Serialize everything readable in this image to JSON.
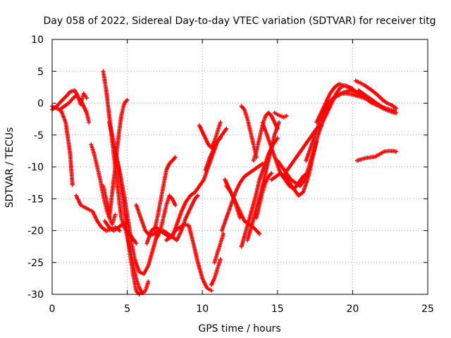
{
  "chart_data": {
    "type": "scatter",
    "title": "Day 058 of 2022, Sidereal Day-to-day VTEC variation (SDTVAR) for receiver titg",
    "xlabel": "GPS time / hours",
    "ylabel": "SDTVAR / TECUs",
    "xlim": [
      0,
      25
    ],
    "ylim": [
      -30,
      10
    ],
    "xticks": [
      0,
      5,
      10,
      15,
      20,
      25
    ],
    "yticks": [
      -30,
      -25,
      -20,
      -15,
      -10,
      -5,
      0,
      5,
      10
    ],
    "grid": true,
    "marker": "plus",
    "color": "#ff0000",
    "series": [
      {
        "x": [
          0.0,
          0.3,
          0.6,
          0.9,
          1.2,
          1.35
        ],
        "y": [
          -0.5,
          -0.8,
          -1.2,
          -3.0,
          -8.0,
          -12.8
        ]
      },
      {
        "x": [
          0.0,
          0.3,
          0.6,
          0.9,
          1.2,
          1.5,
          1.7,
          1.9,
          2.1,
          2.3
        ],
        "y": [
          -1.0,
          -0.5,
          0.3,
          1.0,
          1.8,
          2.0,
          1.2,
          -0.2,
          1.5,
          0.8
        ]
      },
      {
        "x": [
          0.5,
          0.8,
          1.1,
          1.4,
          1.6,
          1.9,
          2.1,
          2.3,
          2.45
        ],
        "y": [
          -1.0,
          -0.5,
          0.0,
          0.8,
          1.2,
          0.5,
          -0.5,
          -1.5,
          -3.0
        ]
      },
      {
        "x": [
          1.6,
          1.9,
          2.3,
          2.7,
          3.0,
          3.3,
          3.6,
          3.9,
          4.2,
          4.5
        ],
        "y": [
          -14.5,
          -16.0,
          -16.5,
          -17.0,
          -18.5,
          -19.5,
          -20.0,
          -19.8,
          -19.5,
          -20.0
        ]
      },
      {
        "x": [
          2.6,
          2.8,
          3.0,
          3.2,
          3.4,
          3.6,
          3.8
        ],
        "y": [
          -6.5,
          -8.0,
          -10.0,
          -12.0,
          -14.5,
          -16.5,
          -18.0
        ]
      },
      {
        "x": [
          3.4,
          3.6,
          3.8,
          3.9,
          4.0,
          4.2
        ],
        "y": [
          -13.0,
          -15.0,
          -17.5,
          -18.5,
          -19.0,
          -17.5
        ]
      },
      {
        "x": [
          3.5,
          3.8,
          4.1,
          4.4,
          4.7,
          5.0
        ],
        "y": [
          -18.5,
          -19.5,
          -20.0,
          -19.5,
          -19.0,
          -20.0
        ]
      },
      {
        "x": [
          3.4,
          3.6,
          3.8,
          4.0,
          4.2,
          4.4,
          4.6,
          4.8,
          5.0,
          5.3,
          5.6
        ],
        "y": [
          5.0,
          2.0,
          -2.0,
          -6.0,
          -10.0,
          -14.0,
          -18.0,
          -19.5,
          -20.0,
          -21.0,
          -22.0
        ]
      },
      {
        "x": [
          3.8,
          4.0,
          4.2,
          4.4,
          4.6,
          4.8,
          5.0
        ],
        "y": [
          -18.0,
          -14.0,
          -10.0,
          -5.5,
          -2.0,
          0.0,
          0.5
        ]
      },
      {
        "x": [
          3.8,
          4.0,
          4.2,
          4.4,
          4.6,
          4.8,
          5.0,
          5.2,
          5.4,
          5.6,
          5.8
        ],
        "y": [
          -3.0,
          -5.0,
          -7.5,
          -10.0,
          -13.0,
          -16.5,
          -20.5,
          -24.0,
          -27.0,
          -29.5,
          -30.0
        ]
      },
      {
        "x": [
          4.8,
          5.0,
          5.2,
          5.4,
          5.6,
          5.8,
          6.0,
          6.2,
          6.4
        ],
        "y": [
          -19.0,
          -21.0,
          -23.0,
          -25.5,
          -27.5,
          -29.0,
          -29.8,
          -29.5,
          -28.0
        ]
      },
      {
        "x": [
          4.3,
          4.6,
          4.9,
          5.1,
          5.3,
          5.5,
          5.8,
          6.1,
          6.4,
          6.7,
          7.0
        ],
        "y": [
          -8.5,
          -12.0,
          -16.0,
          -19.0,
          -22.0,
          -24.5,
          -26.5,
          -26.8,
          -25.5,
          -23.0,
          -20.5
        ]
      },
      {
        "x": [
          5.6,
          5.9,
          6.2,
          6.5,
          6.8,
          7.1
        ],
        "y": [
          -16.0,
          -18.0,
          -20.0,
          -20.8,
          -20.5,
          -20.0
        ]
      },
      {
        "x": [
          6.3,
          6.6,
          6.9,
          7.2,
          7.5,
          7.8
        ],
        "y": [
          -22.0,
          -20.0,
          -19.5,
          -20.0,
          -20.5,
          -21.0
        ]
      },
      {
        "x": [
          6.8,
          7.0,
          7.2,
          7.4,
          7.6,
          7.8,
          8.0,
          8.2
        ],
        "y": [
          -20.0,
          -18.0,
          -15.5,
          -13.0,
          -10.5,
          -9.5,
          -9.0,
          -8.5
        ]
      },
      {
        "x": [
          7.0,
          7.2,
          7.4,
          7.6,
          7.8,
          8.0,
          8.2
        ],
        "y": [
          -21.0,
          -20.0,
          -18.0,
          -16.0,
          -14.5,
          -15.0,
          -16.0
        ]
      },
      {
        "x": [
          7.4,
          7.7,
          8.0,
          8.3,
          8.6,
          8.9,
          9.2,
          9.5,
          9.7
        ],
        "y": [
          -20.0,
          -20.5,
          -21.0,
          -21.5,
          -20.0,
          -18.0,
          -16.5,
          -15.0,
          -14.5
        ]
      },
      {
        "x": [
          7.6,
          7.9,
          8.2,
          8.5,
          8.8,
          9.1,
          9.4,
          9.7,
          10.0,
          10.3,
          10.6
        ],
        "y": [
          -21.5,
          -21.0,
          -20.0,
          -19.5,
          -19.0,
          -19.2,
          -22.0,
          -25.0,
          -27.5,
          -29.0,
          -29.4
        ]
      },
      {
        "x": [
          8.0,
          8.3,
          8.6,
          8.9,
          9.2,
          9.5,
          9.8,
          10.1,
          10.4,
          10.7,
          11.0,
          11.3,
          11.6
        ],
        "y": [
          -21.0,
          -19.0,
          -17.0,
          -15.5,
          -14.5,
          -14.0,
          -13.0,
          -12.0,
          -10.0,
          -8.0,
          -6.0,
          -5.0,
          -4.0
        ]
      },
      {
        "x": [
          9.8,
          10.0,
          10.2,
          10.4,
          10.6,
          10.8,
          11.0,
          11.2
        ],
        "y": [
          -3.5,
          -4.5,
          -5.5,
          -6.5,
          -7.0,
          -6.0,
          -4.5,
          -3.0
        ]
      },
      {
        "x": [
          10.2,
          10.5,
          10.8,
          11.0,
          11.2
        ],
        "y": [
          -10.5,
          -8.5,
          -7.0,
          -6.0,
          -5.5
        ]
      },
      {
        "x": [
          10.6,
          10.8,
          11.0,
          11.2
        ],
        "y": [
          -28.5,
          -27.5,
          -26.0,
          -24.5
        ]
      },
      {
        "x": [
          10.8,
          11.0,
          11.2,
          11.4
        ],
        "y": [
          -25.0,
          -23.5,
          -22.0,
          -20.5
        ]
      },
      {
        "x": [
          11.5,
          11.7,
          11.9,
          12.1,
          12.3,
          12.5
        ],
        "y": [
          -12.0,
          -13.0,
          -14.0,
          -15.0,
          -16.5,
          -18.0
        ]
      },
      {
        "x": [
          11.3,
          11.6,
          11.9,
          12.2,
          12.5,
          12.8,
          13.1,
          13.4,
          13.7,
          14.0
        ],
        "y": [
          -20.0,
          -18.0,
          -16.0,
          -14.0,
          -12.5,
          -11.5,
          -11.0,
          -10.5,
          -10.0,
          -9.5
        ]
      },
      {
        "x": [
          11.6,
          11.9,
          12.2,
          12.5,
          12.8,
          13.1,
          13.4,
          13.6,
          13.8
        ],
        "y": [
          -13.0,
          -14.0,
          -15.5,
          -17.0,
          -18.5,
          -19.0,
          -19.5,
          -20.0,
          -20.5
        ]
      },
      {
        "x": [
          12.6,
          12.8,
          13.0,
          13.2,
          13.4,
          13.6
        ],
        "y": [
          -0.5,
          -1.0,
          -2.5,
          -4.5,
          -6.5,
          -8.5
        ]
      },
      {
        "x": [
          12.6,
          12.9,
          13.2,
          13.5,
          13.8,
          14.1,
          14.4,
          14.7,
          15.0
        ],
        "y": [
          -22.5,
          -20.0,
          -17.5,
          -15.0,
          -12.0,
          -10.0,
          -8.0,
          -6.5,
          -5.5
        ]
      },
      {
        "x": [
          13.0,
          13.3,
          13.6,
          13.9,
          14.2,
          14.5,
          14.8,
          15.1
        ],
        "y": [
          -21.5,
          -19.0,
          -16.5,
          -14.0,
          -11.0,
          -8.0,
          -5.0,
          -3.0
        ]
      },
      {
        "x": [
          13.4,
          13.6,
          13.8,
          14.0,
          14.2,
          14.4,
          14.6,
          14.8,
          15.0
        ],
        "y": [
          -9.0,
          -7.5,
          -5.5,
          -3.5,
          -2.0,
          -1.5,
          -2.0,
          -3.0,
          -4.0
        ]
      },
      {
        "x": [
          13.6,
          13.8,
          14.0,
          14.2,
          14.4,
          14.6
        ],
        "y": [
          -18.0,
          -16.0,
          -14.0,
          -12.5,
          -11.5,
          -11.0
        ]
      },
      {
        "x": [
          14.0,
          14.3,
          14.6,
          14.9,
          15.2,
          15.5,
          15.8,
          16.1,
          16.4,
          16.7,
          17.0
        ],
        "y": [
          -3.0,
          -5.0,
          -7.0,
          -9.0,
          -11.0,
          -12.0,
          -13.0,
          -13.5,
          -12.5,
          -11.5,
          -11.0
        ]
      },
      {
        "x": [
          14.6,
          14.9,
          15.2,
          15.5,
          15.8,
          16.1,
          16.4,
          16.7,
          17.0,
          17.3,
          17.6
        ],
        "y": [
          -12.0,
          -11.5,
          -11.0,
          -11.5,
          -12.5,
          -13.5,
          -14.5,
          -14.0,
          -12.0,
          -9.0,
          -6.0
        ]
      },
      {
        "x": [
          14.8,
          15.0,
          15.2,
          15.4,
          15.6
        ],
        "y": [
          -1.5,
          -1.8,
          -2.0,
          -2.2,
          -2.0
        ]
      },
      {
        "x": [
          15.0,
          15.3,
          15.6,
          15.9,
          16.2,
          16.5,
          16.8,
          17.1,
          17.4,
          17.7,
          18.0,
          18.3,
          18.6,
          18.9,
          19.2,
          19.5,
          19.8,
          20.1,
          20.4,
          20.7,
          21.0,
          21.3,
          21.6,
          21.9,
          22.2,
          22.5,
          22.8
        ],
        "y": [
          -9.0,
          -10.0,
          -11.0,
          -12.0,
          -12.5,
          -13.0,
          -12.0,
          -10.0,
          -7.5,
          -5.0,
          -3.0,
          -1.5,
          0.0,
          1.5,
          2.5,
          2.8,
          2.5,
          2.0,
          1.5,
          1.0,
          0.5,
          0.0,
          -0.3,
          -0.5,
          -0.8,
          -1.0,
          -1.2
        ]
      },
      {
        "x": [
          15.5,
          15.8,
          16.1,
          16.4,
          16.7,
          17.0,
          17.3,
          17.6,
          17.9
        ],
        "y": [
          -11.0,
          -10.0,
          -9.0,
          -8.0,
          -7.0,
          -6.0,
          -5.0,
          -4.0,
          -3.5
        ]
      },
      {
        "x": [
          16.9,
          17.2,
          17.5,
          17.8,
          18.1,
          18.4,
          18.7,
          19.0,
          19.3,
          19.6,
          19.9,
          20.2,
          20.5,
          20.8,
          21.1,
          21.4,
          21.7,
          22.0,
          22.3,
          22.6,
          22.9
        ],
        "y": [
          -9.0,
          -7.0,
          -5.0,
          -3.0,
          -1.5,
          0.0,
          0.8,
          1.2,
          1.5,
          1.5,
          1.4,
          1.2,
          1.0,
          0.8,
          0.5,
          0.0,
          -0.4,
          -0.8,
          -1.0,
          -1.3,
          -1.5
        ]
      },
      {
        "x": [
          17.6,
          17.9,
          18.2,
          18.5,
          18.8,
          19.1,
          19.4,
          19.7,
          20.0
        ],
        "y": [
          -3.0,
          -1.5,
          0.0,
          1.5,
          2.5,
          3.0,
          2.8,
          2.5,
          2.3
        ]
      },
      {
        "x": [
          18.0,
          18.3,
          18.6,
          18.9,
          19.2,
          19.5,
          19.8,
          20.1,
          20.4
        ],
        "y": [
          -1.5,
          -0.5,
          0.5,
          1.0,
          1.5,
          1.8,
          2.0,
          1.8,
          1.5
        ]
      },
      {
        "x": [
          20.2,
          20.5,
          20.8,
          21.1,
          21.4,
          21.7,
          22.0,
          22.3,
          22.6,
          22.9
        ],
        "y": [
          3.5,
          3.2,
          2.8,
          2.3,
          1.8,
          1.2,
          0.5,
          0.0,
          -0.3,
          -0.8
        ]
      },
      {
        "x": [
          20.4,
          20.7,
          21.0,
          21.3,
          21.6,
          21.9,
          22.2,
          22.5,
          22.8
        ],
        "y": [
          2.0,
          1.5,
          1.0,
          0.5,
          0.0,
          -0.5,
          -1.0,
          -1.3,
          -1.5
        ]
      },
      {
        "x": [
          20.3,
          20.6,
          20.9,
          21.2,
          21.5,
          21.8,
          22.1,
          22.4,
          22.7,
          22.9
        ],
        "y": [
          -9.0,
          -8.8,
          -8.6,
          -8.5,
          -8.4,
          -8.0,
          -7.6,
          -7.5,
          -7.5,
          -7.6
        ]
      }
    ]
  }
}
